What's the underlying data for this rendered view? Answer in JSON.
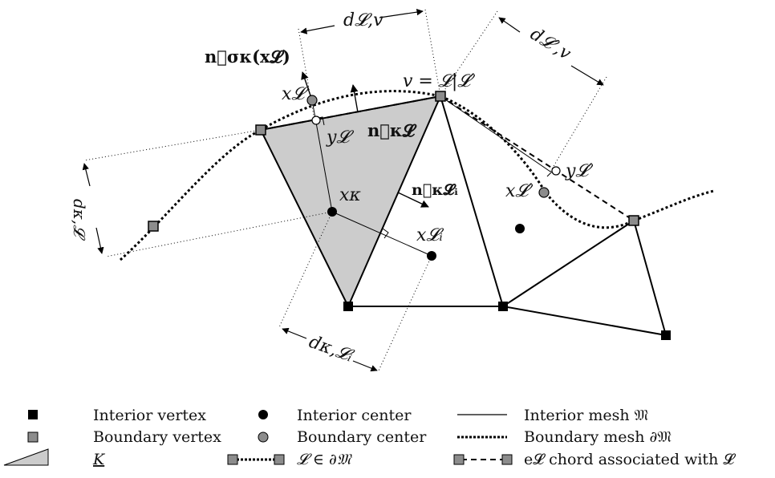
{
  "labels": {
    "d_L_v": "d𝓛,v",
    "d_Lp_v": "d𝓛′,v",
    "n_sigma_K": "n⃗σκ(x𝓛)",
    "x_L": "x𝓛",
    "v_eq": "v = 𝓛|𝓛′",
    "y_L": "y𝓛",
    "n_KL": "n⃗κ𝓛",
    "d_K_L": "dκ,𝓛",
    "x_K": "xκ",
    "n_KLi": "n⃗κ𝓛ᵢ",
    "x_Li": "x𝓛ᵢ",
    "d_K_Li": "dκ,𝓛ᵢ",
    "y_Lp": "y𝓛′",
    "x_Lp": "x𝓛′"
  },
  "legend": {
    "interior_vertex": "Interior vertex",
    "boundary_vertex": "Boundary vertex",
    "cell_K": "K",
    "interior_center": "Interior center",
    "boundary_center": "Boundary center",
    "L_in_boundary": "𝓛 ∈ ∂𝔐",
    "interior_mesh": "Interior mesh 𝔐",
    "boundary_mesh": "Boundary mesh ∂𝔐",
    "chord": "e𝓛 chord associated with 𝓛"
  },
  "colors": {
    "cell_fill": "#cccccc",
    "boundary_gray": "#8c8c8c",
    "black": "#000000"
  }
}
